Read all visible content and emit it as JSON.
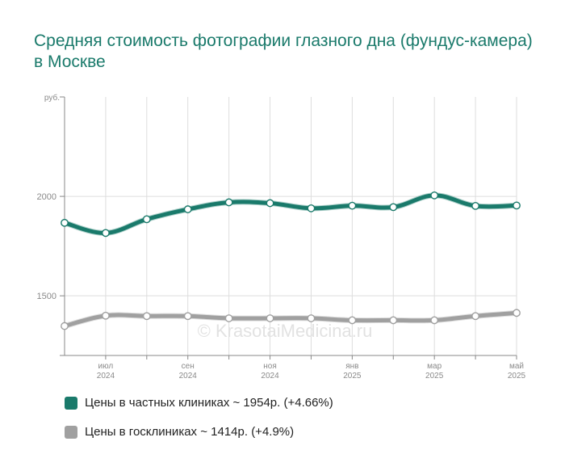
{
  "chart_data": {
    "type": "line",
    "title": "Средняя стоимость фотографии глазного дна (фундус-камера) в Москве",
    "y_unit": "руб.",
    "ylim": [
      1200,
      2500
    ],
    "y_ticks": [
      1500,
      2000
    ],
    "grid": true,
    "x": [
      "2024-06",
      "2024-07",
      "2024-08",
      "2024-09",
      "2024-10",
      "2024-11",
      "2024-12",
      "2025-01",
      "2025-02",
      "2025-03",
      "2025-04",
      "2025-05"
    ],
    "x_tick_labels": [
      {
        "month": "июл",
        "year": "2024",
        "at": "2024-07"
      },
      {
        "month": "сен",
        "year": "2024",
        "at": "2024-09"
      },
      {
        "month": "ноя",
        "year": "2024",
        "at": "2024-11"
      },
      {
        "month": "янв",
        "year": "2025",
        "at": "2025-01"
      },
      {
        "month": "мар",
        "year": "2025",
        "at": "2025-03"
      },
      {
        "month": "май",
        "year": "2025",
        "at": "2025-05"
      }
    ],
    "series": [
      {
        "name": "Цены в частных клиниках",
        "color": "#1a7a6b",
        "values": [
          1867,
          1816,
          1885,
          1935,
          1970,
          1966,
          1940,
          1953,
          1946,
          2005,
          1952,
          1954
        ]
      },
      {
        "name": "Цены в госклиниках",
        "color": "#a0a0a0",
        "values": [
          1348,
          1400,
          1398,
          1398,
          1387,
          1387,
          1387,
          1377,
          1377,
          1377,
          1398,
          1414
        ]
      }
    ],
    "legend": [
      "Цены в частных клиниках ~ 1954р. (+4.66%)",
      "Цены в госклиниках ~ 1414р. (+4.9%)"
    ],
    "legend_position": "bottom",
    "watermark": "© KrasotaiMedicina.ru"
  }
}
